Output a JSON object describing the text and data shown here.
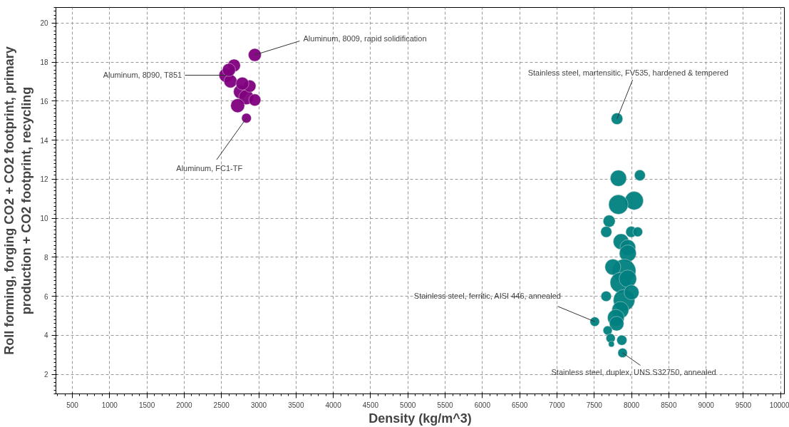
{
  "chart_data": {
    "type": "bubble",
    "xlabel": "Density (kg/m^3)",
    "ylabel": "Roll forming, forging CO2 + CO2 footprint, primary\nproduction + CO2 footprint, recycling",
    "xlim": [
      280,
      10050
    ],
    "ylim": [
      1,
      20.8
    ],
    "xticks": [
      500,
      1000,
      1500,
      2000,
      2500,
      3000,
      3500,
      4000,
      4500,
      5000,
      5500,
      6000,
      6500,
      7000,
      7500,
      8000,
      8500,
      9000,
      9500,
      10000
    ],
    "yticks": [
      2,
      4,
      6,
      8,
      10,
      12,
      14,
      16,
      18,
      20
    ],
    "grid": true,
    "series": [
      {
        "color": "#800080",
        "x": [
          2947,
          2563,
          2669,
          2621,
          2755,
          2832,
          2880,
          2947,
          2835,
          2717,
          2780,
          2600
        ],
        "values": [
          18.37,
          17.33,
          17.83,
          17.02,
          16.48,
          16.2,
          16.77,
          16.06,
          15.13,
          15.77,
          16.9,
          17.6
        ],
        "sizes": [
          0.3,
          0.37,
          0.29,
          0.31,
          0.35,
          0.4,
          0.27,
          0.26,
          0.17,
          0.35,
          0.3,
          0.31
        ]
      },
      {
        "color": "#008080",
        "x": [
          7805,
          7824,
          8112,
          8035,
          7824,
          7700,
          7661,
          7997,
          8083,
          7860,
          7950,
          7950,
          7900,
          7750,
          7850,
          7950,
          7660,
          7900,
          8000,
          7850,
          7790,
          7507,
          7800,
          7680,
          7720,
          7730,
          7870,
          7880
        ],
        "values": [
          15.1,
          12.05,
          12.2,
          10.9,
          10.7,
          9.85,
          9.3,
          9.3,
          9.3,
          8.8,
          8.5,
          8.2,
          7.3,
          7.5,
          6.7,
          6.9,
          6.0,
          5.8,
          6.2,
          5.3,
          4.9,
          4.7,
          4.6,
          4.25,
          3.85,
          3.55,
          3.75,
          3.1
        ],
        "sizes": [
          0.24,
          0.47,
          0.21,
          0.61,
          0.68,
          0.26,
          0.22,
          0.22,
          0.17,
          0.44,
          0.44,
          0.51,
          1,
          0.45,
          0.75,
          0.55,
          0.19,
          0.83,
          0.4,
          0.51,
          0.5,
          0.16,
          0.38,
          0.15,
          0.15,
          0.06,
          0.18,
          0.16
        ]
      }
    ],
    "annotations": [
      {
        "text": "Aluminum, 8009, rapid solidification",
        "x": 2947,
        "y": 18.37
      },
      {
        "text": "Aluminum, 8090, T851",
        "x": 2563,
        "y": 17.33
      },
      {
        "text": "Aluminum, FC1-TF",
        "x": 2835,
        "y": 15.13
      },
      {
        "text": "Stainless steel, martensitic, FV535, hardened & tempered",
        "x": 7805,
        "y": 15.1
      },
      {
        "text": "Stainless steel, ferritic, AISI 446, annealed",
        "x": 7507,
        "y": 4.7
      },
      {
        "text": "Stainless steel, duplex, UNS S32750, annealed",
        "x": 7880,
        "y": 3.1
      }
    ]
  }
}
